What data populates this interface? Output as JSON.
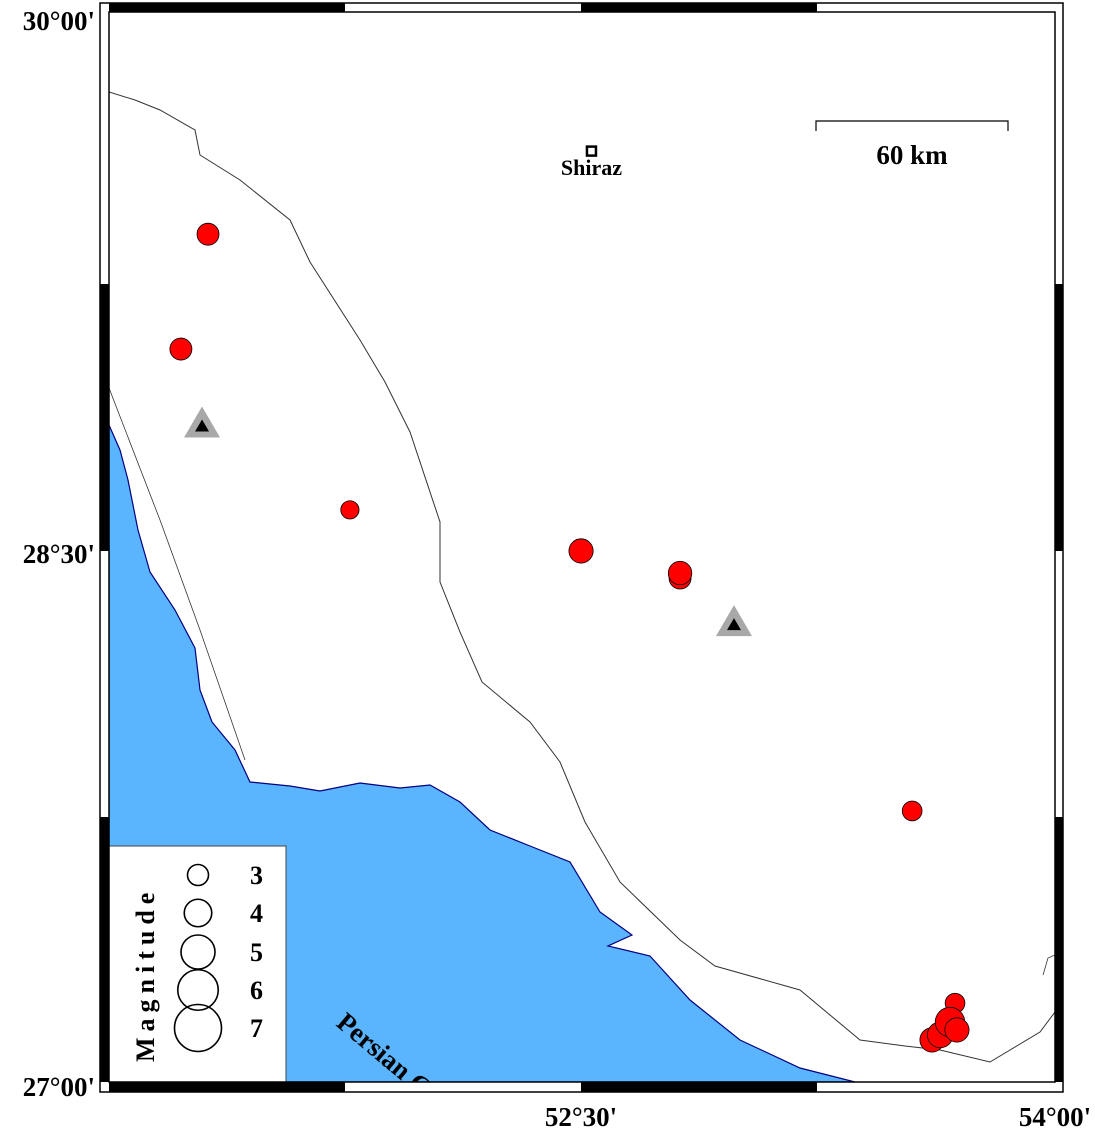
{
  "map": {
    "extent": {
      "lon": [
        51.0,
        54.0
      ],
      "lat": [
        27.0,
        30.0
      ]
    },
    "colors": {
      "sea": "#5ab4fe",
      "land": "#ffffff",
      "event": "#ff0000",
      "station_outer": "#a8a8a8",
      "station_inner": "#000000",
      "coast": "#000080"
    },
    "lat_labels": [
      "30°00'",
      "28°30'",
      "27°00'"
    ],
    "lon_labels": [
      "52°30'",
      "54°00'"
    ],
    "city": {
      "name": "Shiraz",
      "lon": 52.53,
      "lat": 29.61
    },
    "scale_bar": {
      "label": "60 km"
    },
    "sea_label": "Persian Gulf",
    "events": [
      {
        "lon": 51.314,
        "lat": 29.377,
        "mag": 3.0
      },
      {
        "lon": 51.228,
        "lat": 29.055,
        "mag": 3.0
      },
      {
        "lon": 51.764,
        "lat": 28.604,
        "mag": 2.5
      },
      {
        "lon": 52.497,
        "lat": 28.489,
        "mag": 3.3
      },
      {
        "lon": 52.811,
        "lat": 28.413,
        "mag": 3.0
      },
      {
        "lon": 52.811,
        "lat": 28.427,
        "mag": 3.2
      },
      {
        "lon": 53.547,
        "lat": 27.76,
        "mag": 2.7
      },
      {
        "lon": 53.683,
        "lat": 27.221,
        "mag": 2.7
      },
      {
        "lon": 53.61,
        "lat": 27.118,
        "mag": 3.3
      },
      {
        "lon": 53.636,
        "lat": 27.132,
        "mag": 3.5
      },
      {
        "lon": 53.667,
        "lat": 27.168,
        "mag": 4.0
      },
      {
        "lon": 53.689,
        "lat": 27.146,
        "mag": 3.3
      }
    ],
    "stations": [
      {
        "lon": 51.295,
        "lat": 28.838
      },
      {
        "lon": 52.982,
        "lat": 28.281
      }
    ],
    "legend": {
      "title": "Magnitude",
      "entries": [
        {
          "mag": 3,
          "label": "3"
        },
        {
          "mag": 4,
          "label": "4"
        },
        {
          "mag": 5,
          "label": "5"
        },
        {
          "mag": 6,
          "label": "6"
        },
        {
          "mag": 7,
          "label": "7"
        }
      ]
    }
  }
}
